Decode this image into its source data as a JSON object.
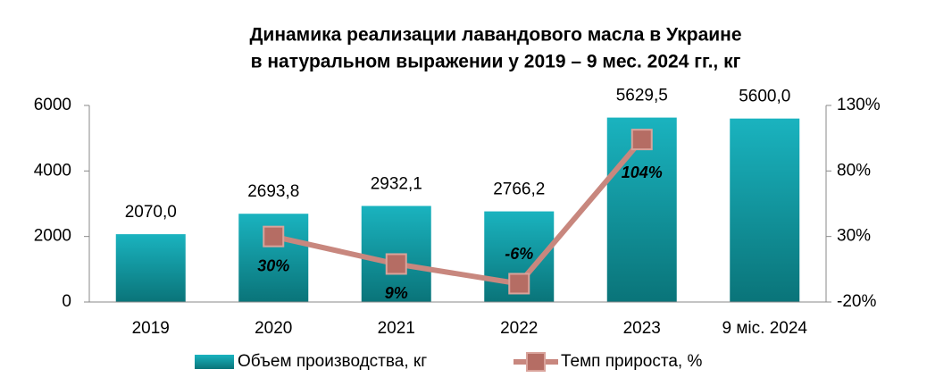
{
  "chart_data": {
    "type": "bar_line",
    "title": [
      "Динамика реализации лавандового масла в Украине",
      "в натуральном выражении у 2019 – 9 мес. 2024 гг., кг"
    ],
    "categories": [
      "2019",
      "2020",
      "2021",
      "2022",
      "2023",
      "9 міс. 2024"
    ],
    "series": [
      {
        "name": "Объем производства, кг",
        "type": "bar",
        "color": "#12a3ad",
        "values": [
          2070,
          2693.8,
          2932.1,
          2766.2,
          5629.5,
          5600
        ],
        "value_labels": [
          "2070,0",
          "2693,8",
          "2932,1",
          "2766,2",
          "5629,5",
          "5600,0"
        ]
      },
      {
        "name": "Темп прироста, %",
        "type": "line",
        "axis": "y2",
        "color": "#c8877e",
        "values": [
          null,
          30,
          9,
          -6,
          104,
          null
        ],
        "value_labels": [
          null,
          "30%",
          "9%",
          "-6%",
          "104%",
          null
        ]
      }
    ],
    "ylim": [
      0,
      6000
    ],
    "yticks": [
      0,
      2000,
      4000,
      6000
    ],
    "y2lim": [
      -20,
      130
    ],
    "y2ticks": [
      {
        "value": -20,
        "label": "-20%"
      },
      {
        "value": 30,
        "label": "30%"
      },
      {
        "value": 80,
        "label": "80%"
      },
      {
        "value": 130,
        "label": "130%"
      }
    ],
    "legend": "bottom"
  }
}
